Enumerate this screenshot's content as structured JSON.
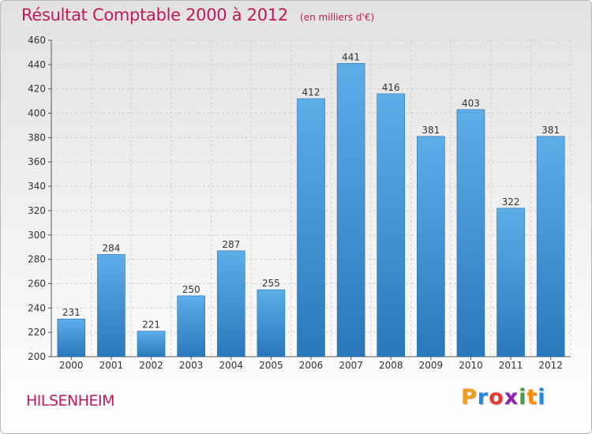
{
  "header": {
    "title": "Résultat Comptable 2000 à 2012",
    "subtitle": "(en milliers d'€)"
  },
  "footer": {
    "city": "HILSENHEIM",
    "logo_letters": [
      "P",
      "r",
      "o",
      "x",
      "i",
      "t",
      "i"
    ],
    "logo_colors": [
      "#f39c12",
      "#1e88e5",
      "#e53935",
      "#8e24aa",
      "#43a047",
      "#fb8c00",
      "#1e88e5"
    ]
  },
  "chart_data": {
    "type": "bar",
    "title": "Résultat Comptable 2000 à 2012",
    "subtitle": "(en milliers d'€)",
    "xlabel": "",
    "ylabel": "",
    "categories": [
      "2000",
      "2001",
      "2002",
      "2003",
      "2004",
      "2005",
      "2006",
      "2007",
      "2008",
      "2009",
      "2010",
      "2011",
      "2012"
    ],
    "values": [
      231,
      284,
      221,
      250,
      287,
      255,
      412,
      441,
      416,
      381,
      403,
      322,
      381
    ],
    "ylim": [
      200,
      460
    ],
    "yticks": [
      200,
      220,
      240,
      260,
      280,
      300,
      320,
      340,
      360,
      380,
      400,
      420,
      440,
      460
    ],
    "grid": true,
    "data_labels": true,
    "bar_color": "#3d8fd4"
  }
}
